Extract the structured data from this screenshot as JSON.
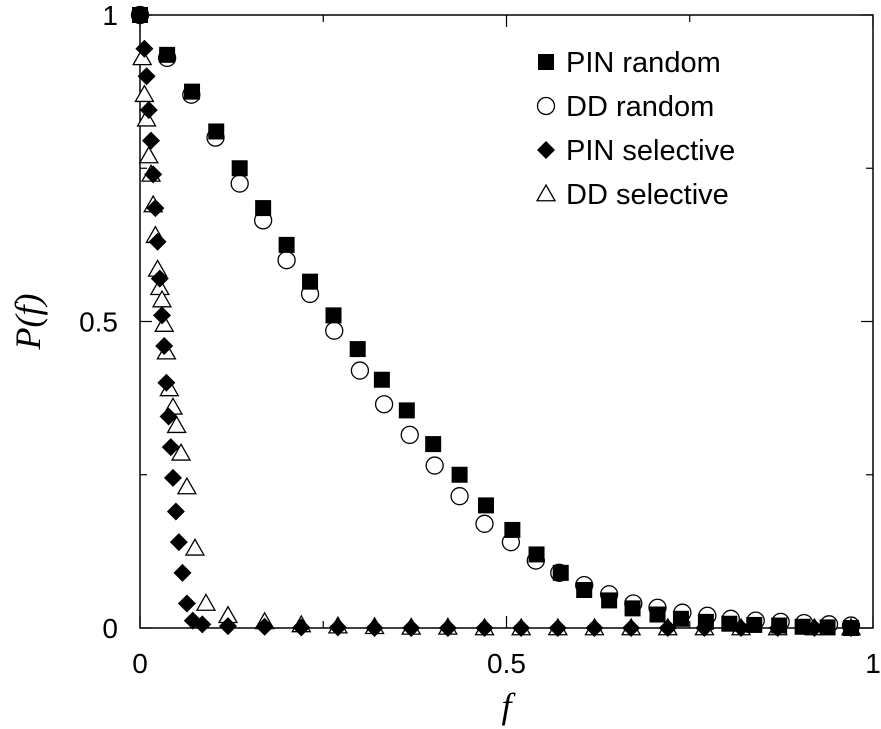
{
  "chart_data": {
    "type": "scatter",
    "title": "",
    "xlabel": "f",
    "ylabel": "P(f)",
    "xlim": [
      0,
      1
    ],
    "ylim": [
      0,
      1
    ],
    "x_ticks": [
      {
        "value": 0,
        "label": "0"
      },
      {
        "value": 0.5,
        "label": "0.5"
      },
      {
        "value": 1,
        "label": "1"
      }
    ],
    "y_ticks": [
      {
        "value": 0,
        "label": "0"
      },
      {
        "value": 0.5,
        "label": "0.5"
      },
      {
        "value": 1,
        "label": "1"
      }
    ],
    "legend_position": "top-right",
    "grid": false,
    "series": [
      {
        "name": "PIN random",
        "marker": "filled-square",
        "x": [
          0.0,
          0.037,
          0.071,
          0.104,
          0.136,
          0.168,
          0.2,
          0.232,
          0.264,
          0.297,
          0.33,
          0.364,
          0.4,
          0.436,
          0.472,
          0.508,
          0.541,
          0.574,
          0.606,
          0.64,
          0.672,
          0.706,
          0.738,
          0.772,
          0.804,
          0.838,
          0.872,
          0.904,
          0.938,
          0.97
        ],
        "y": [
          1.0,
          0.935,
          0.875,
          0.81,
          0.75,
          0.685,
          0.625,
          0.565,
          0.51,
          0.455,
          0.405,
          0.355,
          0.3,
          0.25,
          0.2,
          0.16,
          0.12,
          0.09,
          0.062,
          0.045,
          0.032,
          0.022,
          0.015,
          0.01,
          0.007,
          0.005,
          0.004,
          0.002,
          0.001,
          0.0
        ]
      },
      {
        "name": "DD random",
        "marker": "open-circle",
        "x": [
          0.0,
          0.037,
          0.07,
          0.103,
          0.136,
          0.168,
          0.2,
          0.232,
          0.265,
          0.3,
          0.333,
          0.368,
          0.402,
          0.436,
          0.47,
          0.506,
          0.54,
          0.572,
          0.606,
          0.64,
          0.673,
          0.706,
          0.74,
          0.774,
          0.806,
          0.84,
          0.874,
          0.906,
          0.94,
          0.97
        ],
        "y": [
          1.0,
          0.93,
          0.87,
          0.8,
          0.725,
          0.665,
          0.6,
          0.545,
          0.485,
          0.42,
          0.365,
          0.315,
          0.265,
          0.215,
          0.17,
          0.14,
          0.11,
          0.09,
          0.07,
          0.055,
          0.04,
          0.033,
          0.025,
          0.02,
          0.015,
          0.012,
          0.01,
          0.008,
          0.006,
          0.004
        ]
      },
      {
        "name": "PIN selective",
        "marker": "filled-diamond",
        "x": [
          0.0,
          0.006,
          0.009,
          0.012,
          0.015,
          0.018,
          0.021,
          0.024,
          0.027,
          0.03,
          0.033,
          0.036,
          0.039,
          0.042,
          0.045,
          0.049,
          0.053,
          0.058,
          0.064,
          0.072,
          0.085,
          0.12,
          0.17,
          0.22,
          0.27,
          0.32,
          0.37,
          0.42,
          0.47,
          0.52,
          0.57,
          0.62,
          0.67,
          0.72,
          0.77,
          0.82,
          0.87,
          0.92,
          0.97
        ],
        "y": [
          1.0,
          0.945,
          0.9,
          0.845,
          0.795,
          0.74,
          0.685,
          0.63,
          0.57,
          0.51,
          0.46,
          0.4,
          0.345,
          0.295,
          0.245,
          0.19,
          0.14,
          0.09,
          0.04,
          0.012,
          0.006,
          0.003,
          0.002,
          0.001,
          0.001,
          0.0,
          0.0,
          0.0,
          0.0,
          0.0,
          0.0,
          0.0,
          0.0,
          0.0,
          0.0,
          0.0,
          0.0,
          0.0,
          0.0
        ]
      },
      {
        "name": "DD selective",
        "marker": "open-triangle",
        "x": [
          0.003,
          0.006,
          0.009,
          0.012,
          0.015,
          0.018,
          0.021,
          0.024,
          0.027,
          0.03,
          0.033,
          0.036,
          0.04,
          0.045,
          0.05,
          0.056,
          0.064,
          0.075,
          0.09,
          0.12,
          0.17,
          0.22,
          0.27,
          0.32,
          0.37,
          0.42,
          0.47,
          0.52,
          0.57,
          0.62,
          0.67,
          0.72,
          0.77,
          0.82,
          0.87,
          0.92,
          0.97
        ],
        "y": [
          0.93,
          0.87,
          0.83,
          0.77,
          0.74,
          0.69,
          0.64,
          0.585,
          0.555,
          0.535,
          0.495,
          0.45,
          0.39,
          0.36,
          0.33,
          0.285,
          0.23,
          0.13,
          0.04,
          0.02,
          0.01,
          0.005,
          0.003,
          0.002,
          0.001,
          0.001,
          0.0,
          0.0,
          0.0,
          0.0,
          0.0,
          0.0,
          0.0,
          0.0,
          0.0,
          0.0,
          0.0
        ]
      }
    ]
  }
}
